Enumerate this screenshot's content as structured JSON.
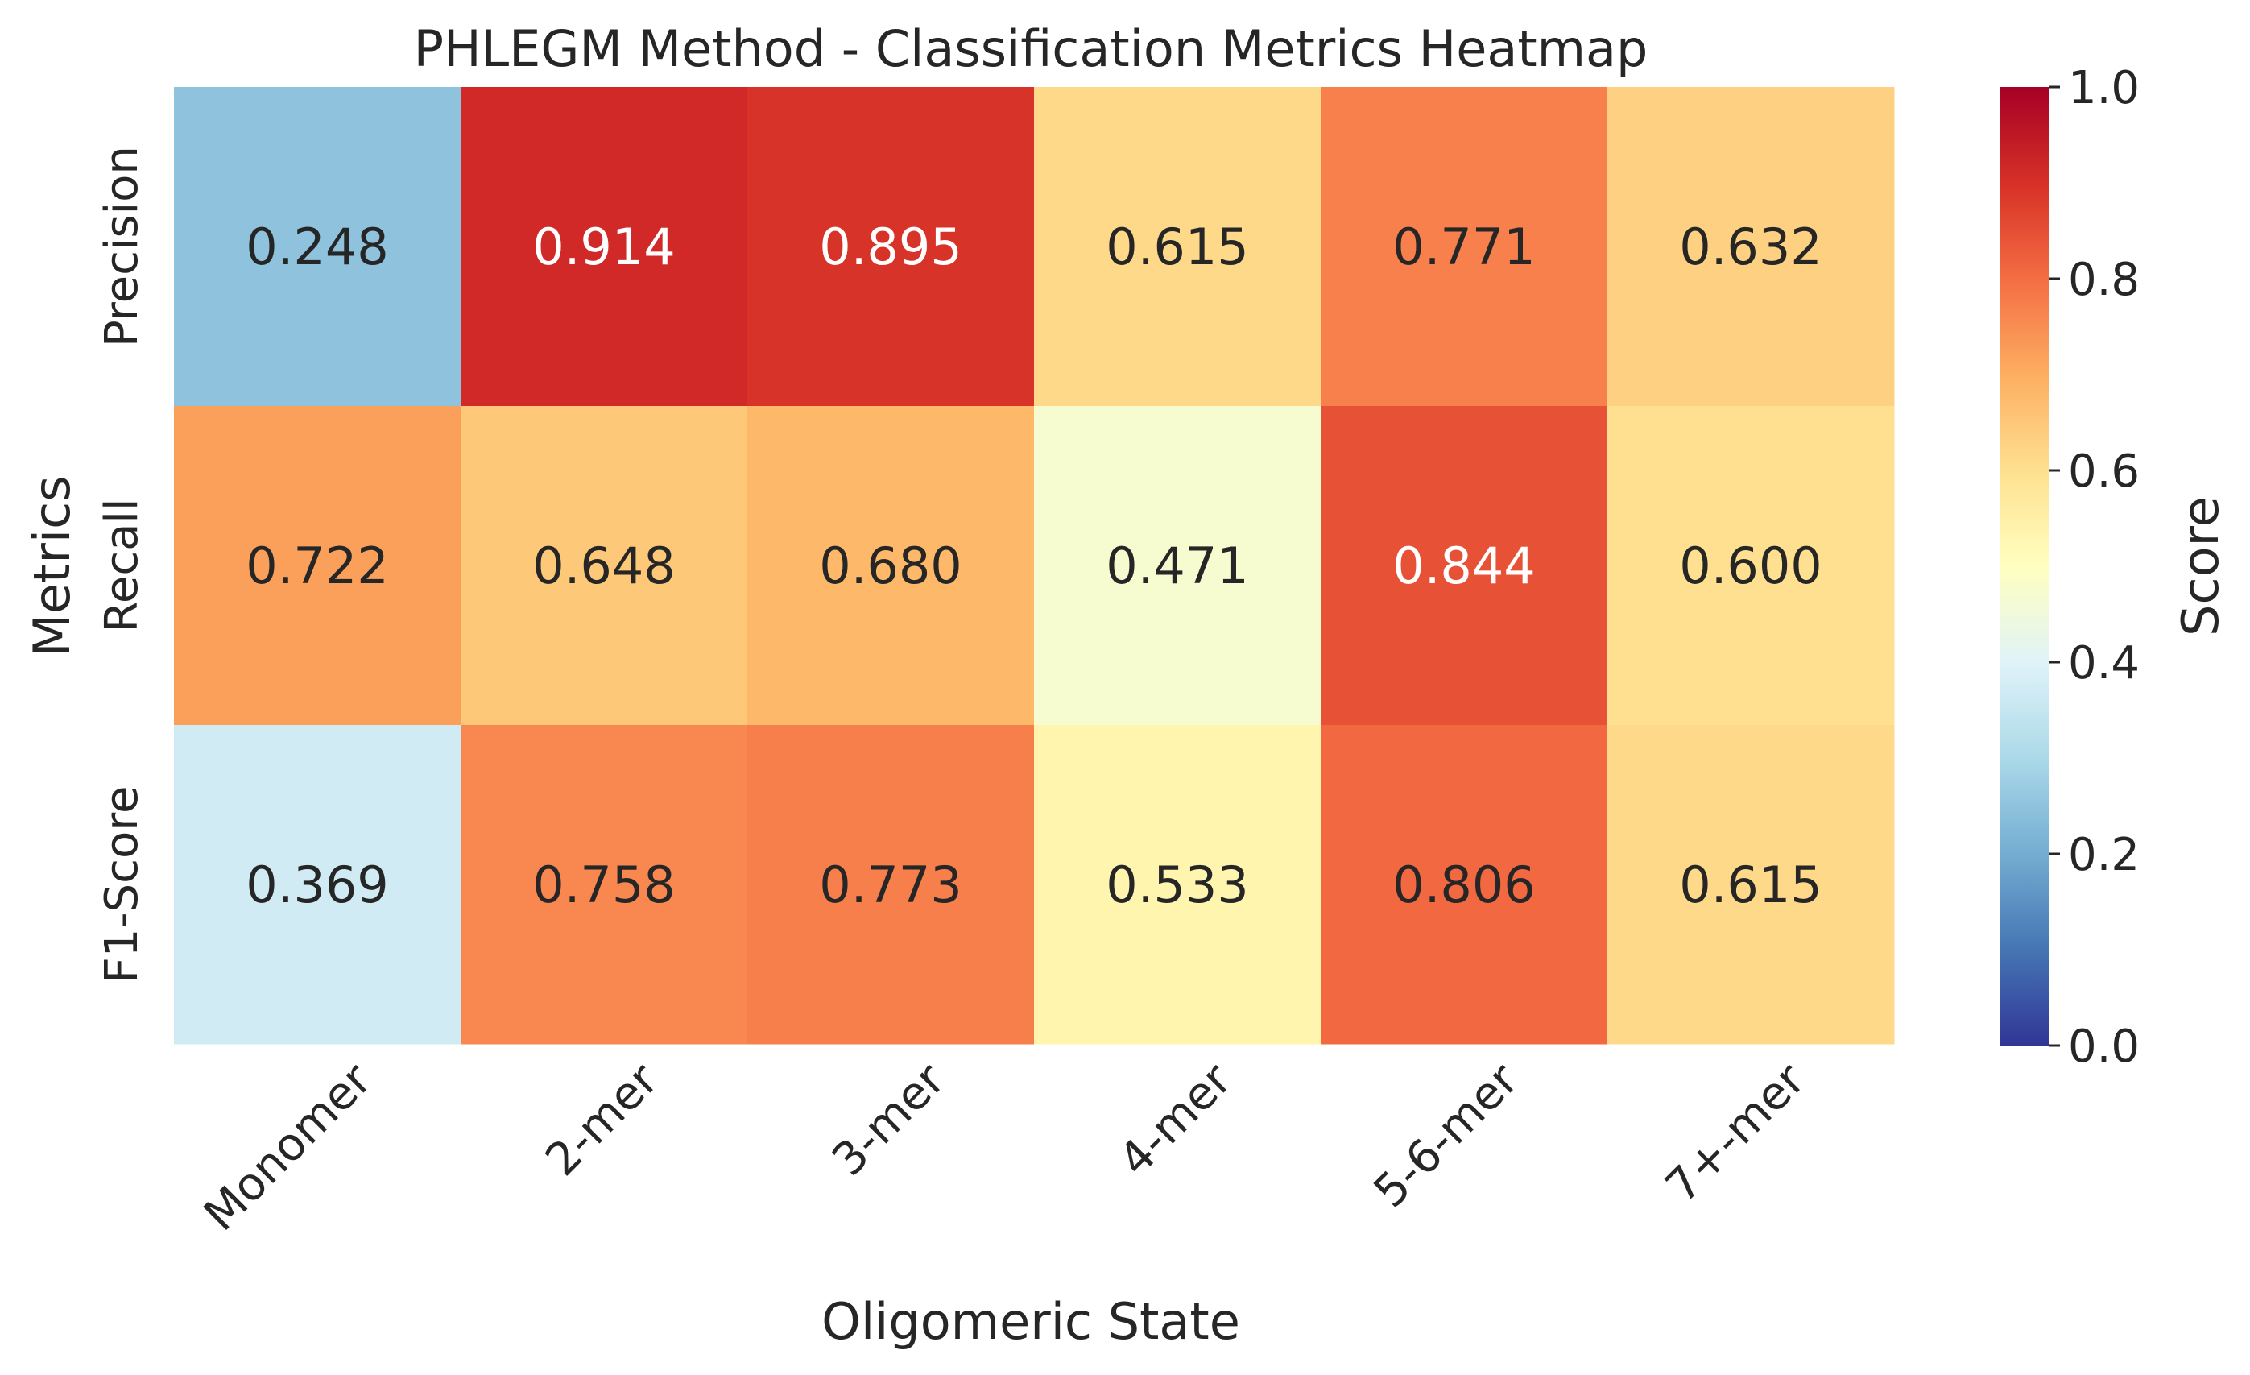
{
  "chart_data": {
    "type": "heatmap",
    "title": "PHLEGM Method - Classification Metrics Heatmap",
    "xlabel": "Oligomeric State",
    "ylabel": "Metrics",
    "x_categories": [
      "Monomer",
      "2-mer",
      "3-mer",
      "4-mer",
      "5-6-mer",
      "7+-mer"
    ],
    "y_categories": [
      "Precision",
      "Recall",
      "F1-Score"
    ],
    "values": [
      [
        0.248,
        0.914,
        0.895,
        0.615,
        0.771,
        0.632
      ],
      [
        0.722,
        0.648,
        0.68,
        0.471,
        0.844,
        0.6
      ],
      [
        0.369,
        0.758,
        0.773,
        0.533,
        0.806,
        0.615
      ]
    ],
    "cell_labels": [
      [
        "0.248",
        "0.914",
        "0.895",
        "0.615",
        "0.771",
        "0.632"
      ],
      [
        "0.722",
        "0.648",
        "0.680",
        "0.471",
        "0.844",
        "0.600"
      ],
      [
        "0.369",
        "0.758",
        "0.773",
        "0.533",
        "0.806",
        "0.615"
      ]
    ],
    "colormap": "RdYlBu_r",
    "colorbar": {
      "label": "Score",
      "range": [
        0.0,
        1.0
      ],
      "ticks": [
        "0.0",
        "0.2",
        "0.4",
        "0.6",
        "0.8",
        "1.0"
      ]
    },
    "text_colors": {
      "dark": "#262626",
      "light": "#ffffff"
    }
  }
}
